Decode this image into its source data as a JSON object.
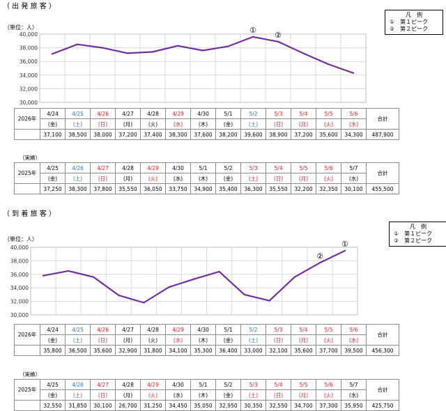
{
  "colors": {
    "line": "#7030a0",
    "grid": "#d9d9d9",
    "saturday": "#2e75b6",
    "holiday": "#e02020"
  },
  "departure": {
    "title": "（ 出 発 旅 客 ）",
    "unit": "（単位：人）",
    "legend": {
      "title": "凡　例",
      "items": [
        "①　第１ピーク",
        "②　第２ピーク"
      ]
    },
    "peak_markers": [
      "①",
      "②"
    ],
    "current": {
      "year_label": "2026年",
      "total_label": "合計",
      "total": "487,900",
      "dates": [
        "4/24",
        "4/25",
        "4/26",
        "4/27",
        "4/28",
        "4/29",
        "4/30",
        "5/1",
        "5/2",
        "5/3",
        "5/4",
        "5/5",
        "5/6"
      ],
      "weekdays": [
        "(金)",
        "(土)",
        "(日)",
        "(月)",
        "(火)",
        "(水)",
        "(木)",
        "(金)",
        "(土)",
        "(日)",
        "(月)",
        "(火)",
        "(水)"
      ],
      "day_types": [
        "w",
        "s",
        "h",
        "w",
        "w",
        "h",
        "w",
        "w",
        "s",
        "h",
        "h",
        "h",
        "h"
      ],
      "values": [
        "37,100",
        "38,500",
        "38,000",
        "37,200",
        "37,400",
        "38,300",
        "37,600",
        "38,200",
        "39,600",
        "38,900",
        "37,200",
        "35,600",
        "34,300"
      ]
    },
    "previous": {
      "header": "（実績）",
      "year_label": "2025年",
      "total_label": "合計",
      "total": "455,500",
      "dates": [
        "4/25",
        "4/26",
        "4/27",
        "4/28",
        "4/29",
        "4/30",
        "5/1",
        "5/2",
        "5/3",
        "5/4",
        "5/5",
        "5/6",
        "5/7"
      ],
      "weekdays": [
        "(金)",
        "(土)",
        "(日)",
        "(月)",
        "(火)",
        "(水)",
        "(木)",
        "(金)",
        "(土)",
        "(日)",
        "(月)",
        "(火)",
        "(水)"
      ],
      "day_types": [
        "w",
        "s",
        "h",
        "w",
        "h",
        "w",
        "w",
        "w",
        "h",
        "h",
        "h",
        "h",
        "w"
      ],
      "values": [
        "37,250",
        "38,300",
        "37,800",
        "35,550",
        "36,050",
        "33,750",
        "34,900",
        "35,400",
        "36,300",
        "35,550",
        "32,200",
        "32,350",
        "30,100"
      ]
    }
  },
  "arrival": {
    "title": "（ 到 着 旅 客 ）",
    "unit": "（単位：人）",
    "legend": {
      "title": "凡　例",
      "items": [
        "①　第１ピーク",
        "②　第２ピーク"
      ]
    },
    "peak_markers": [
      "②",
      "①"
    ],
    "current": {
      "year_label": "2026年",
      "total_label": "合計",
      "total": "456,300",
      "dates": [
        "4/24",
        "4/25",
        "4/26",
        "4/27",
        "4/28",
        "4/29",
        "4/30",
        "5/1",
        "5/2",
        "5/3",
        "5/4",
        "5/5",
        "5/6"
      ],
      "weekdays": [
        "(金)",
        "(土)",
        "(日)",
        "(月)",
        "(火)",
        "(水)",
        "(木)",
        "(金)",
        "(土)",
        "(日)",
        "(月)",
        "(火)",
        "(水)"
      ],
      "day_types": [
        "w",
        "s",
        "h",
        "w",
        "w",
        "h",
        "w",
        "w",
        "s",
        "h",
        "h",
        "h",
        "h"
      ],
      "values": [
        "35,800",
        "36,500",
        "35,600",
        "32,900",
        "31,800",
        "34,100",
        "35,300",
        "36,400",
        "33,000",
        "32,100",
        "35,600",
        "37,700",
        "39,500"
      ]
    },
    "previous": {
      "header": "（実績）",
      "year_label": "2025年",
      "total_label": "合計",
      "total": "425,750",
      "dates": [
        "4/25",
        "4/26",
        "4/27",
        "4/28",
        "4/29",
        "4/30",
        "5/1",
        "5/2",
        "5/3",
        "5/4",
        "5/5",
        "5/6",
        "5/7"
      ],
      "weekdays": [
        "(金)",
        "(土)",
        "(日)",
        "(月)",
        "(火)",
        "(水)",
        "(木)",
        "(金)",
        "(土)",
        "(日)",
        "(月)",
        "(火)",
        "(水)"
      ],
      "day_types": [
        "w",
        "s",
        "h",
        "w",
        "h",
        "w",
        "w",
        "w",
        "h",
        "h",
        "h",
        "h",
        "w"
      ],
      "values": [
        "32,550",
        "31,850",
        "30,100",
        "26,700",
        "31,250",
        "34,450",
        "35,050",
        "32,950",
        "30,350",
        "32,550",
        "34,700",
        "37,300",
        "35,950"
      ]
    }
  },
  "chart_data": [
    {
      "type": "line",
      "categories": [
        "4/24",
        "4/25",
        "4/26",
        "4/27",
        "4/28",
        "4/29",
        "4/30",
        "5/1",
        "5/2",
        "5/3",
        "5/4",
        "5/5",
        "5/6"
      ],
      "series": [
        {
          "values": [
            37100,
            38500,
            38000,
            37200,
            37400,
            38300,
            37600,
            38200,
            39600,
            38900,
            37200,
            35600,
            34300
          ]
        }
      ],
      "ylim": [
        30000,
        40000
      ],
      "yticks": [
        "30,000",
        "32,000",
        "34,000",
        "36,000",
        "38,000",
        "40,000"
      ],
      "grid": true,
      "peaks": [
        {
          "marker": "①",
          "category": "5/2"
        },
        {
          "marker": "②",
          "category": "5/3"
        }
      ]
    },
    {
      "type": "line",
      "categories": [
        "4/24",
        "4/25",
        "4/26",
        "4/27",
        "4/28",
        "4/29",
        "4/30",
        "5/1",
        "5/2",
        "5/3",
        "5/4",
        "5/5",
        "5/6"
      ],
      "series": [
        {
          "values": [
            35800,
            36500,
            35600,
            32900,
            31800,
            34100,
            35300,
            36400,
            33000,
            32100,
            35600,
            37700,
            39500
          ]
        }
      ],
      "ylim": [
        30000,
        40000
      ],
      "yticks": [
        "30,000",
        "32,000",
        "34,000",
        "36,000",
        "38,000",
        "40,000"
      ],
      "grid": true,
      "peaks": [
        {
          "marker": "②",
          "category": "5/5"
        },
        {
          "marker": "①",
          "category": "5/6"
        }
      ]
    }
  ]
}
